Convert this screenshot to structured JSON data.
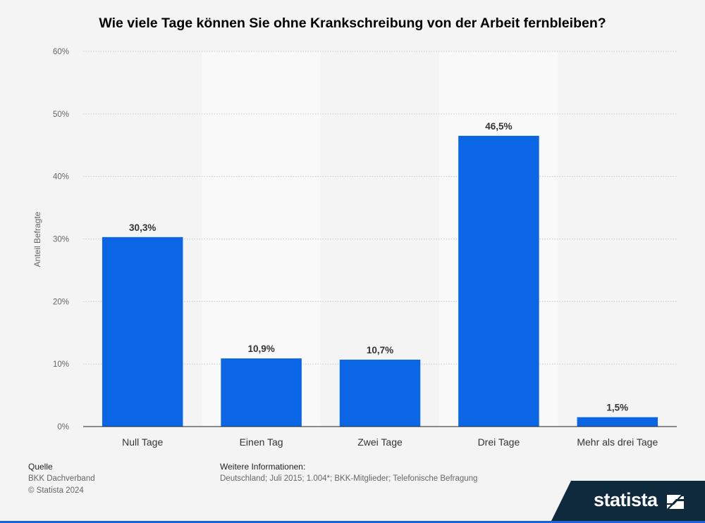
{
  "title": "Wie viele Tage können Sie ohne Krankschreibung von der Arbeit fernbleiben?",
  "chart_data": {
    "type": "bar",
    "title": "Wie viele Tage können Sie ohne Krankschreibung von der Arbeit fernbleiben?",
    "xlabel": "",
    "ylabel": "Anteil Befragte",
    "categories": [
      "Null Tage",
      "Einen Tag",
      "Zwei Tage",
      "Drei Tage",
      "Mehr als drei Tage"
    ],
    "values": [
      30.3,
      10.9,
      10.7,
      46.5,
      1.5
    ],
    "value_labels": [
      "30,3%",
      "10,9%",
      "10,7%",
      "46,5%",
      "1,5%"
    ],
    "ylim": [
      0,
      60
    ],
    "yticks": [
      0,
      10,
      20,
      30,
      40,
      50,
      60
    ],
    "ytick_labels": [
      "0%",
      "10%",
      "20%",
      "30%",
      "40%",
      "50%",
      "60%"
    ],
    "grid": true,
    "bar_color": "#0a66e4"
  },
  "footer": {
    "source_header": "Quelle",
    "source_line1": "BKK Dachverband",
    "source_line2": "© Statista 2024",
    "info_header": "Weitere Informationen:",
    "info_text": "Deutschland; Juli 2015; 1.004*; BKK-Mitglieder; Telefonische Befragung"
  },
  "brand": {
    "name": "statista",
    "icon": "statista-logo-icon",
    "band_color": "#0f2a3c"
  }
}
